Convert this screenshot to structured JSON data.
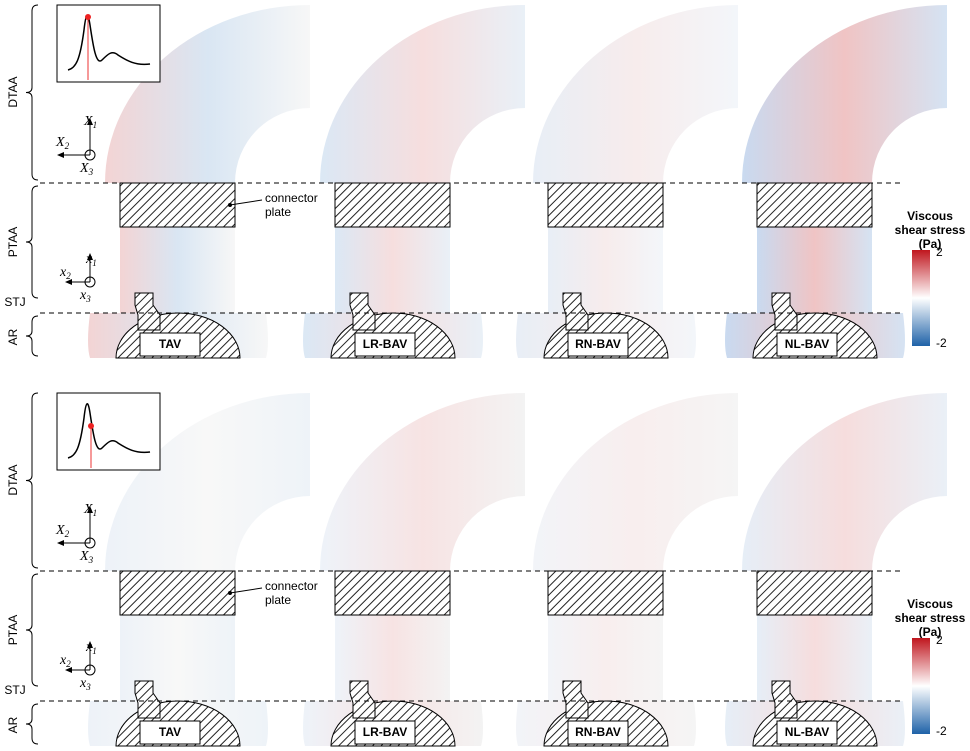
{
  "panels": [
    {
      "regions": [
        "DTAA",
        "PTAA",
        "STJ",
        "AR"
      ],
      "global_axes": [
        {
          "letter": "X",
          "sub": "1"
        },
        {
          "letter": "X",
          "sub": "2"
        },
        {
          "letter": "X",
          "sub": "3"
        }
      ],
      "local_axes": [
        {
          "letter": "x",
          "sub": "1"
        },
        {
          "letter": "x",
          "sub": "2"
        },
        {
          "letter": "x",
          "sub": "3"
        }
      ],
      "connector_label": [
        "connector",
        "plate"
      ],
      "valves": [
        "TAV",
        "LR-BAV",
        "RN-BAV",
        "NL-BAV"
      ],
      "colorbar": {
        "title": [
          "Viscous",
          "shear stress",
          "(Pa)"
        ],
        "ticks": [
          2,
          -2
        ]
      }
    },
    {
      "regions": [
        "DTAA",
        "PTAA",
        "STJ",
        "AR"
      ],
      "global_axes": [
        {
          "letter": "X",
          "sub": "1"
        },
        {
          "letter": "X",
          "sub": "2"
        },
        {
          "letter": "X",
          "sub": "3"
        }
      ],
      "local_axes": [
        {
          "letter": "x",
          "sub": "1"
        },
        {
          "letter": "x",
          "sub": "2"
        },
        {
          "letter": "x",
          "sub": "3"
        }
      ],
      "connector_label": [
        "connector",
        "plate"
      ],
      "valves": [
        "TAV",
        "LR-BAV",
        "RN-BAV",
        "NL-BAV"
      ],
      "colorbar": {
        "title": [
          "Viscous",
          "shear stress",
          "(Pa)"
        ],
        "ticks": [
          2,
          -2
        ]
      }
    }
  ]
}
